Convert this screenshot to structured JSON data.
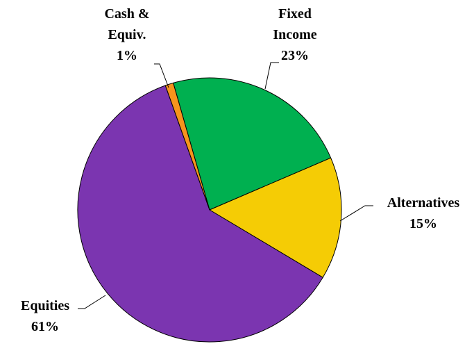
{
  "chart_data": {
    "type": "pie",
    "categories": [
      "Fixed Income",
      "Alternatives",
      "Equities",
      "Cash & Equiv."
    ],
    "values": [
      23,
      15,
      61,
      1
    ],
    "value_labels": [
      "23%",
      "15%",
      "61%",
      "1%"
    ],
    "colors": [
      "#00b050",
      "#f5cc05",
      "#7b35b0",
      "#f7941d"
    ]
  }
}
